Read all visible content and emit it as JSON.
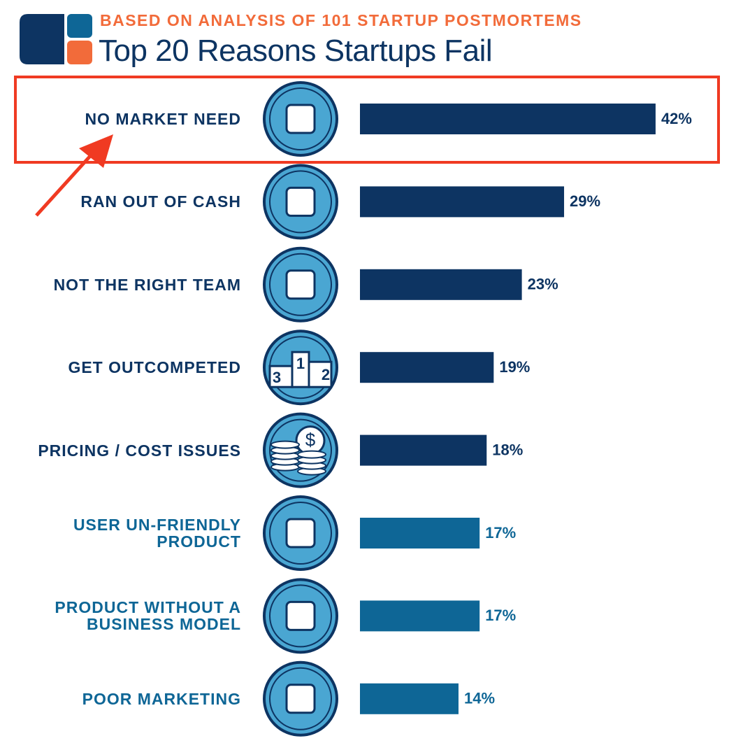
{
  "chart_data": {
    "type": "bar",
    "subtitle": "BASED ON ANALYSIS OF 101 STARTUP POSTMORTEMS",
    "title": "Top 20 Reasons Startups Fail",
    "categories": [
      "NO MARKET NEED",
      "RAN OUT OF CASH",
      "NOT THE RIGHT TEAM",
      "GET OUTCOMPETED",
      "PRICING / COST ISSUES",
      "USER UN-FRIENDLY\nPRODUCT",
      "PRODUCT WITHOUT A\nBUSINESS MODEL",
      "POOR MARKETING"
    ],
    "values": [
      42,
      29,
      23,
      19,
      18,
      17,
      17,
      14
    ],
    "value_labels": [
      "42%",
      "29%",
      "23%",
      "19%",
      "18%",
      "17%",
      "17%",
      "14%"
    ],
    "colors": [
      "#0d3462",
      "#0d3462",
      "#0d3462",
      "#0d3462",
      "#0d3462",
      "#0e6696",
      "#0e6696",
      "#0e6696"
    ]
  },
  "icon_text": {
    "podium": [
      "3",
      "1",
      "2"
    ],
    "coin": "$"
  }
}
